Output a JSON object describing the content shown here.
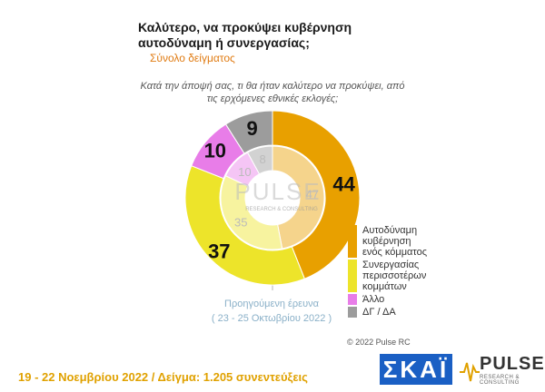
{
  "title": "Καλύτερο, να προκύψει κυβέρνηση αυτοδύναμη ή συνεργασίας;",
  "subtitle": "Σύνολο δείγματος",
  "question": "Κατά την άποψή σας, τι θα ήταν καλύτερο να προκύψει, από τις ερχόμενες εθνικές εκλογές;",
  "chart_data": {
    "type": "pie",
    "subtype": "nested-donut",
    "categories": [
      "Αυτοδύναμη κυβέρνηση ενός κόμματος",
      "Συνεργασίας περισσοτέρων κομμάτων",
      "Άλλο",
      "ΔΓ / ΔΑ"
    ],
    "colors": [
      "#e8a000",
      "#ede42a",
      "#e87de8",
      "#9c9c9c"
    ],
    "series": [
      {
        "name": "",
        "values": [
          44,
          37,
          10,
          9
        ]
      },
      {
        "name": "Προηγούμενη έρευνα",
        "values": [
          47,
          35,
          10,
          8
        ]
      }
    ],
    "legend_position": "right"
  },
  "previous_label": "Προηγούμενη έρευνα",
  "previous_dates": "( 23 - 25 Οκτωβρίου  2022 )",
  "copyright": "© 2022 Pulse RC",
  "footer": "19 - 22  Νοεμβρίου  2022  /  Δείγμα:  1.205 συνεντεύξεις",
  "logos": {
    "skai": "ΣΚΑΪ",
    "pulse": "PULSE",
    "pulse_sub": "RESEARCH & CONSULTING",
    "watermark": "PULSE",
    "watermark_sub": "RESEARCH & CONSULTING"
  }
}
